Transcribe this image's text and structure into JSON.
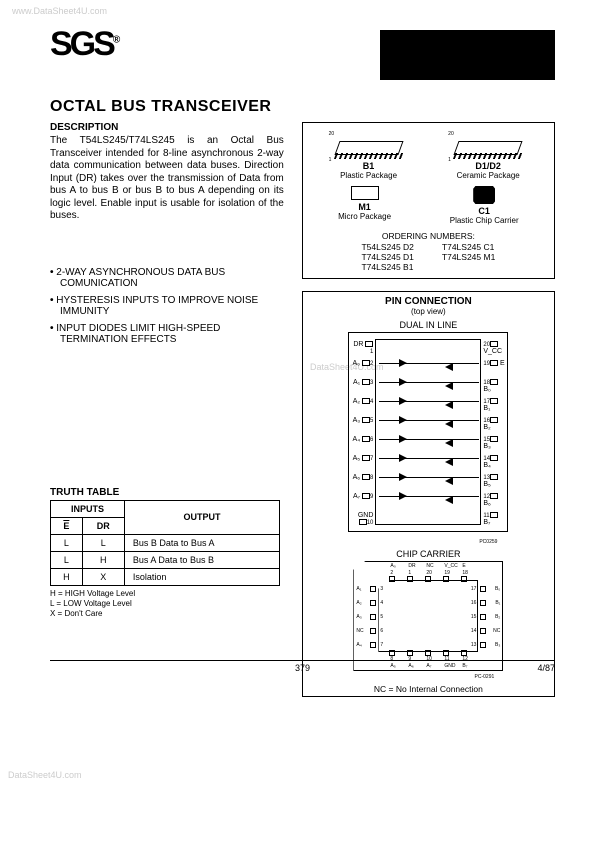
{
  "watermarks": {
    "top": "www.DataSheet4U.com",
    "mid": "DataSheet4U.com",
    "bottom": "DataSheet4U.com"
  },
  "logo": {
    "text": "SGS",
    "reg": "®"
  },
  "title": "OCTAL BUS TRANSCEIVER",
  "description": {
    "heading": "DESCRIPTION",
    "body": "The T54LS245/T74LS245 is an Octal Bus Transceiver intended for 8-line asynchronous 2-way data communication between data buses. Direction Input (DR) takes over the transmission of Data from bus A to bus B or bus B to bus A depending on its logic level. Enable input is usable for isolation of the buses."
  },
  "packages": {
    "b1": {
      "code": "B1",
      "name": "Plastic Package",
      "pin20": "20",
      "pin1": "1"
    },
    "d1d2": {
      "code": "D1/D2",
      "name": "Ceramic Package",
      "pin20": "20",
      "pin1": "1"
    },
    "m1": {
      "code": "M1",
      "name": "Micro Package"
    },
    "c1": {
      "code": "C1",
      "name": "Plastic Chip Carrier"
    },
    "ordering_title": "ORDERING NUMBERS:",
    "ordering_left": [
      "T54LS245 D2",
      "T74LS245 D1",
      "T74LS245 B1"
    ],
    "ordering_right": [
      "T74LS245 C1",
      "T74LS245 M1"
    ]
  },
  "features": [
    "2-WAY ASYNCHRONOUS DATA BUS COMUNICATION",
    "HYSTERESIS INPUTS TO IMPROVE NOISE IMMUNITY",
    "INPUT DIODES LIMIT HIGH-SPEED TERMINATION EFFECTS"
  ],
  "pin_connection": {
    "title": "PIN CONNECTION",
    "subtitle": "(top view)",
    "dual_in_line": "DUAL IN LINE",
    "left_pins": [
      "DR",
      "A₀",
      "A₁",
      "A₂",
      "A₃",
      "A₄",
      "A₅",
      "A₆",
      "A₇",
      "GND"
    ],
    "left_nums": [
      "1",
      "2",
      "3",
      "4",
      "5",
      "6",
      "7",
      "8",
      "9",
      "10"
    ],
    "right_pins": [
      "V_CC",
      "E",
      "B₀",
      "B₁",
      "B₂",
      "B₃",
      "B₄",
      "B₅",
      "B₆",
      "B₇"
    ],
    "right_nums": [
      "20",
      "19",
      "18",
      "17",
      "16",
      "15",
      "14",
      "13",
      "12",
      "11"
    ],
    "diagram_code": "PC0259",
    "chip_carrier": "CHIP CARRIER",
    "carrier_top_labels": [
      "A₀",
      "DR",
      "NC",
      "V_CC",
      "E"
    ],
    "carrier_top_nums": [
      "2",
      "1",
      "20",
      "19",
      "18"
    ],
    "carrier_left": [
      {
        "n": "3",
        "l": "A₁"
      },
      {
        "n": "4",
        "l": "A₂"
      },
      {
        "n": "5",
        "l": "A₃"
      },
      {
        "n": "6",
        "l": "NC"
      },
      {
        "n": "7",
        "l": "A₄"
      }
    ],
    "carrier_right": [
      {
        "n": "17",
        "l": "B₀"
      },
      {
        "n": "16",
        "l": "B₁"
      },
      {
        "n": "15",
        "l": "B₂"
      },
      {
        "n": "14",
        "l": "NC"
      },
      {
        "n": "13",
        "l": "B₃"
      }
    ],
    "carrier_bottom_labels": [
      "A₅",
      "A₆",
      "A₇",
      "GND",
      "B₇"
    ],
    "carrier_bottom_nums": [
      "8",
      "9",
      "10",
      "11",
      "12"
    ],
    "carrier_code": "PC-0291",
    "nc_note": "NC = No Internal Connection"
  },
  "truth_table": {
    "title": "TRUTH TABLE",
    "inputs_header": "INPUTS",
    "output_header": "OUTPUT",
    "col_e": "E",
    "col_dr": "DR",
    "rows": [
      {
        "e": "L",
        "dr": "L",
        "out": "Bus B Data to Bus A"
      },
      {
        "e": "L",
        "dr": "H",
        "out": "Bus A Data to Bus B"
      },
      {
        "e": "H",
        "dr": "X",
        "out": "Isolation"
      }
    ],
    "legend": [
      "H = HIGH Voltage Level",
      "L = LOW Voltage Level",
      "X = Don't Care"
    ]
  },
  "footer": {
    "page": "379",
    "date": "4/87"
  }
}
